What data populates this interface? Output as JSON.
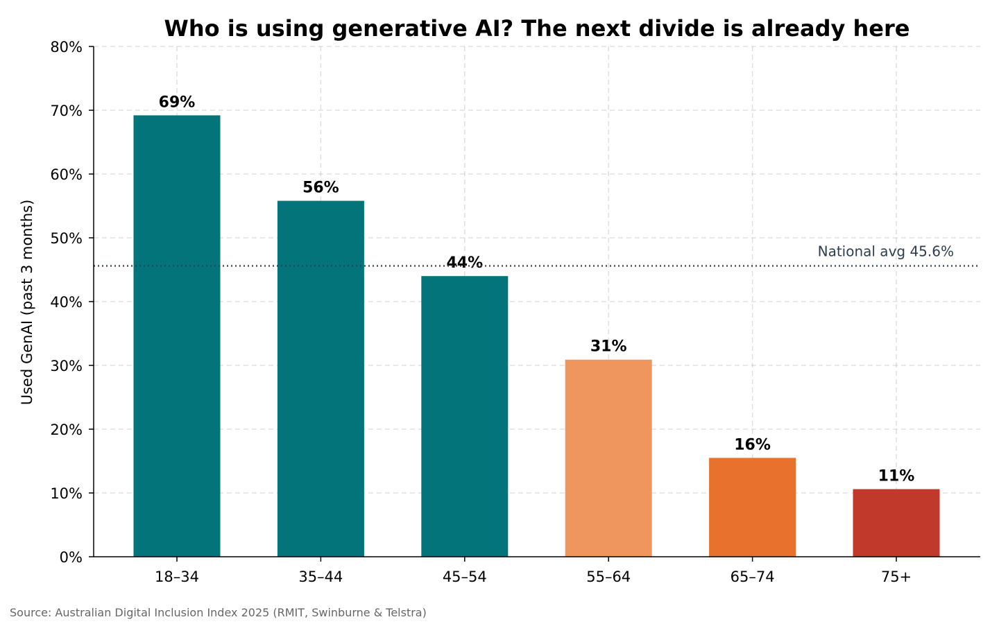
{
  "chart_data": {
    "type": "bar",
    "title": "Who is using generative AI? The next divide is already here",
    "xlabel": "",
    "ylabel": "Used GenAI (past 3 months)",
    "categories": [
      "18–34",
      "35–44",
      "45–54",
      "55–64",
      "65–74",
      "75+"
    ],
    "values": [
      69.2,
      55.8,
      44.0,
      30.9,
      15.5,
      10.6
    ],
    "value_labels": [
      "69%",
      "56%",
      "44%",
      "31%",
      "16%",
      "11%"
    ],
    "bar_colors": [
      "#02747a",
      "#02747a",
      "#02747a",
      "#ef965e",
      "#e8712d",
      "#c0392b"
    ],
    "ylim": [
      0,
      80
    ],
    "yticks": [
      0,
      10,
      20,
      30,
      40,
      50,
      60,
      70,
      80
    ],
    "ytick_labels": [
      "0%",
      "10%",
      "20%",
      "30%",
      "40%",
      "50%",
      "60%",
      "70%",
      "80%"
    ],
    "grid": true,
    "reference_line": {
      "value": 45.6,
      "label": "National avg 45.6%",
      "color": "#2c3e50"
    }
  },
  "source": "Source: Australian Digital Inclusion Index 2025 (RMIT, Swinburne & Telstra)"
}
